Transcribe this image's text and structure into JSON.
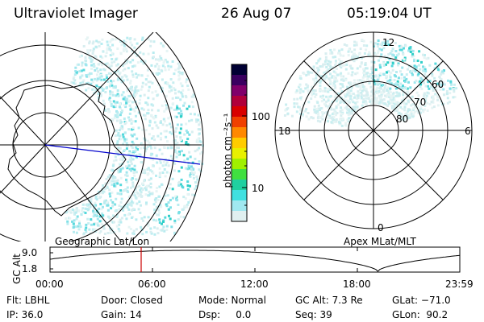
{
  "header": {
    "instrument": "Ultraviolet Imager",
    "date": "26 Aug 07",
    "time": "05:19:04 UT"
  },
  "geo_map": {
    "label": "Geographic Lat/Lon"
  },
  "colorbar": {
    "unit_label": "photon cm⁻²s⁻¹",
    "ticks": [
      "100",
      "10"
    ],
    "colors": [
      "#000033",
      "#3a0060",
      "#80006a",
      "#b0003a",
      "#d80000",
      "#f04000",
      "#ff8800",
      "#ffcc00",
      "#e8f000",
      "#a0f000",
      "#40e040",
      "#20d0a0",
      "#40e0e0",
      "#a0e8f0",
      "#e0f0f0"
    ]
  },
  "polar_plot": {
    "label": "Apex MLat/MLT",
    "mlt_labels": {
      "top": "12",
      "left": "18",
      "right": "6",
      "bottom": "0"
    },
    "lat_labels": [
      "60",
      "70",
      "80"
    ]
  },
  "altitude_plot": {
    "ylabel": "GC Alt",
    "ymax_label": "9.0",
    "ymin_label": "1.8",
    "x_ticks": [
      "00:00",
      "06:00",
      "12:00",
      "18:00",
      "23:59"
    ],
    "marker_color": "#cc0000"
  },
  "status": {
    "row1": {
      "flt": "Flt: LBHL",
      "door": "Door: Closed",
      "mode": "Mode: Normal",
      "gcalt": "GC Alt: 7.3 Re",
      "glat": "GLat: −71.0"
    },
    "row2": {
      "ip": "IP: 36.0",
      "gain": "Gain: 14",
      "dsp": "Dsp:     0.0",
      "seq": "Seq: 39",
      "glon": "GLon:  90.2"
    }
  }
}
